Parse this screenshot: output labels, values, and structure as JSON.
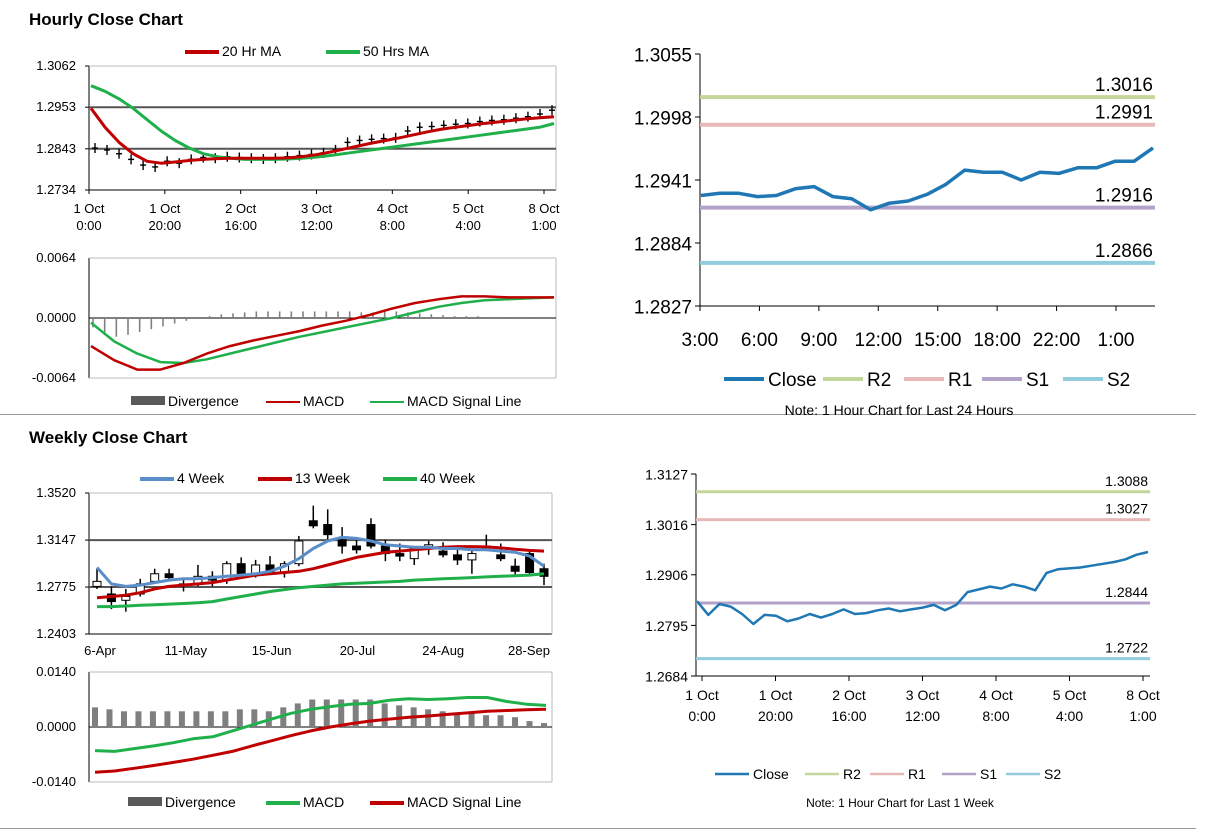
{
  "sections": {
    "hourly_title": "Hourly Close Chart",
    "weekly_title": "Weekly Close Chart"
  },
  "colors": {
    "ma20": "#c00000",
    "ma50": "#1fb04b",
    "wk4": "#5b8ec8",
    "close_line": "#1f77b4",
    "r2": "#c3d69b",
    "r1": "#e6b9b8",
    "s1": "#b3a2c7",
    "s2": "#93cddd",
    "divergence": "#808080",
    "grid": "#000000"
  },
  "chart_data": [
    {
      "id": "hourly_price",
      "type": "candlestick-line",
      "title": "",
      "legend": [
        "20 Hr MA",
        "50 Hrs MA"
      ],
      "yticks": [
        "1.3062",
        "1.2953",
        "1.2843",
        "1.2734"
      ],
      "ylim": [
        1.2734,
        1.3062
      ],
      "hlines": [
        1.2953,
        1.2843
      ],
      "xticks": [
        [
          "1 Oct",
          "0:00"
        ],
        [
          "1 Oct",
          "20:00"
        ],
        [
          "2 Oct",
          "16:00"
        ],
        [
          "3 Oct",
          "12:00"
        ],
        [
          "4 Oct",
          "8:00"
        ],
        [
          "5 Oct",
          "4:00"
        ],
        [
          "8 Oct",
          "1:00"
        ]
      ],
      "price": [
        1.2845,
        1.284,
        1.283,
        1.2815,
        1.28,
        1.2795,
        1.281,
        1.2805,
        1.2815,
        1.282,
        1.2818,
        1.2822,
        1.282,
        1.2818,
        1.2816,
        1.2818,
        1.2822,
        1.2825,
        1.2828,
        1.2832,
        1.284,
        1.286,
        1.2865,
        1.2868,
        1.287,
        1.2872,
        1.289,
        1.29,
        1.2902,
        1.2905,
        1.2908,
        1.291,
        1.2915,
        1.2918,
        1.292,
        1.2924,
        1.2928,
        1.2935,
        1.2945
      ],
      "series": [
        {
          "name": "20 Hr MA",
          "values": [
            1.295,
            1.29,
            1.286,
            1.283,
            1.281,
            1.2805,
            1.2808,
            1.2812,
            1.2815,
            1.2817,
            1.2818,
            1.2818,
            1.2818,
            1.2818,
            1.2819,
            1.2822,
            1.2827,
            1.2834,
            1.2842,
            1.285,
            1.2858,
            1.2865,
            1.2872,
            1.288,
            1.2888,
            1.2895,
            1.29,
            1.2905,
            1.291,
            1.2914,
            1.2918,
            1.2922,
            1.2925,
            1.2928
          ]
        },
        {
          "name": "50 Hrs MA",
          "values": [
            1.301,
            1.2995,
            1.2975,
            1.295,
            1.292,
            1.289,
            1.2865,
            1.2845,
            1.283,
            1.2822,
            1.2818,
            1.2815,
            1.2815,
            1.2815,
            1.2816,
            1.2818,
            1.2821,
            1.2825,
            1.283,
            1.2835,
            1.284,
            1.2845,
            1.285,
            1.2855,
            1.286,
            1.2865,
            1.287,
            1.2875,
            1.288,
            1.2885,
            1.289,
            1.2895,
            1.29,
            1.291
          ]
        }
      ]
    },
    {
      "id": "hourly_macd",
      "type": "bar-line",
      "yticks": [
        "0.0064",
        "0.0000",
        "-0.0064"
      ],
      "ylim": [
        -0.0064,
        0.0064
      ],
      "legend": [
        "Divergence",
        "MACD",
        "MACD Signal Line"
      ],
      "divergence": [
        -0.001,
        -0.0018,
        -0.002,
        -0.0018,
        -0.0015,
        -0.0012,
        -0.0009,
        -0.0006,
        -0.0003,
        -0.0001,
        0.0002,
        0.0004,
        0.0005,
        0.0006,
        0.0007,
        0.0007,
        0.0007,
        0.0007,
        0.0007,
        0.0007,
        0.0007,
        0.0007,
        0.0007,
        0.0006,
        0.0006,
        0.0007,
        0.0007,
        0.0006,
        0.0005,
        0.0004,
        0.0003,
        0.0002,
        0.0002,
        0.0002,
        0.0001,
        0.0001,
        0.0001,
        0.0001,
        0.0001,
        0.0001
      ],
      "series": [
        {
          "name": "MACD",
          "values": [
            -0.003,
            -0.0045,
            -0.0055,
            -0.0055,
            -0.0048,
            -0.0038,
            -0.003,
            -0.0024,
            -0.0019,
            -0.0014,
            -0.0008,
            -0.0003,
            0.0003,
            0.001,
            0.0016,
            0.002,
            0.0023,
            0.0023,
            0.0022,
            0.0022,
            0.0022
          ]
        },
        {
          "name": "MACD Signal Line",
          "values": [
            -0.0005,
            -0.0025,
            -0.0038,
            -0.0047,
            -0.0048,
            -0.0044,
            -0.0038,
            -0.0032,
            -0.0026,
            -0.002,
            -0.0015,
            -0.001,
            -0.0005,
            0.0,
            0.0006,
            0.0012,
            0.0016,
            0.0019,
            0.002,
            0.0021,
            0.0022
          ]
        }
      ]
    },
    {
      "id": "hourly_pivot",
      "type": "line",
      "note": "Note: 1 Hour Chart for Last 24 Hours",
      "yticks": [
        "1.3055",
        "1.2998",
        "1.2941",
        "1.2884",
        "1.2827"
      ],
      "ylim": [
        1.2827,
        1.3055
      ],
      "xticks": [
        "3:00",
        "6:00",
        "9:00",
        "12:00",
        "15:00",
        "18:00",
        "22:00",
        "1:00"
      ],
      "legend": [
        "Close",
        "R2",
        "R1",
        "S1",
        "S2"
      ],
      "levels": {
        "R2": 1.3016,
        "R1": 1.2991,
        "S1": 1.2916,
        "S2": 1.2866
      },
      "level_labels": {
        "R2": "1.3016",
        "R1": "1.2991",
        "S1": "1.2916",
        "S2": "1.2866"
      },
      "close": [
        1.2927,
        1.2929,
        1.2929,
        1.2926,
        1.2927,
        1.2933,
        1.2935,
        1.2926,
        1.2924,
        1.2914,
        1.292,
        1.2922,
        1.2928,
        1.2937,
        1.295,
        1.2948,
        1.2948,
        1.2941,
        1.2948,
        1.2947,
        1.2952,
        1.2952,
        1.2958,
        1.2958,
        1.297
      ]
    },
    {
      "id": "weekly_price",
      "type": "candlestick-line",
      "legend": [
        "4 Week",
        "13 Week",
        "40 Week"
      ],
      "yticks": [
        "1.3520",
        "1.3147",
        "1.2775",
        "1.2403"
      ],
      "ylim": [
        1.2403,
        1.352
      ],
      "hlines": [
        1.3147,
        1.2775
      ],
      "xticks": [
        "6-Apr",
        "11-May",
        "15-Jun",
        "20-Jul",
        "24-Aug",
        "28-Sep"
      ],
      "candles": [
        [
          1.278,
          1.292,
          1.276,
          1.282
        ],
        [
          1.272,
          1.278,
          1.26,
          1.266
        ],
        [
          1.267,
          1.276,
          1.258,
          1.27
        ],
        [
          1.272,
          1.284,
          1.27,
          1.28
        ],
        [
          1.282,
          1.292,
          1.281,
          1.288
        ],
        [
          1.288,
          1.292,
          1.282,
          1.285
        ],
        [
          1.279,
          1.285,
          1.274,
          1.28
        ],
        [
          1.28,
          1.295,
          1.278,
          1.286
        ],
        [
          1.286,
          1.29,
          1.278,
          1.283
        ],
        [
          1.283,
          1.298,
          1.28,
          1.296
        ],
        [
          1.296,
          1.301,
          1.285,
          1.287
        ],
        [
          1.287,
          1.299,
          1.285,
          1.295
        ],
        [
          1.295,
          1.302,
          1.287,
          1.289
        ],
        [
          1.289,
          1.298,
          1.285,
          1.296
        ],
        [
          1.296,
          1.318,
          1.294,
          1.314
        ],
        [
          1.33,
          1.342,
          1.324,
          1.326
        ],
        [
          1.327,
          1.339,
          1.314,
          1.319
        ],
        [
          1.315,
          1.325,
          1.304,
          1.31
        ],
        [
          1.31,
          1.316,
          1.304,
          1.307
        ],
        [
          1.327,
          1.332,
          1.308,
          1.31
        ],
        [
          1.31,
          1.315,
          1.298,
          1.304
        ],
        [
          1.304,
          1.312,
          1.298,
          1.302
        ],
        [
          1.3,
          1.309,
          1.295,
          1.308
        ],
        [
          1.308,
          1.314,
          1.303,
          1.311
        ],
        [
          1.306,
          1.313,
          1.301,
          1.303
        ],
        [
          1.303,
          1.31,
          1.295,
          1.299
        ],
        [
          1.299,
          1.306,
          1.288,
          1.304
        ],
        [
          1.309,
          1.319,
          1.306,
          1.31
        ],
        [
          1.303,
          1.312,
          1.298,
          1.3
        ],
        [
          1.294,
          1.3,
          1.287,
          1.29
        ],
        [
          1.304,
          1.307,
          1.287,
          1.289
        ],
        [
          1.292,
          1.296,
          1.279,
          1.286
        ]
      ],
      "series": [
        {
          "name": "4 Week",
          "values": [
            1.293,
            1.28,
            1.278,
            1.279,
            1.281,
            1.283,
            1.284,
            1.284,
            1.285,
            1.286,
            1.287,
            1.288,
            1.29,
            1.294,
            1.3,
            1.308,
            1.314,
            1.317,
            1.316,
            1.314,
            1.311,
            1.31,
            1.309,
            1.309,
            1.308,
            1.308,
            1.307,
            1.307,
            1.306,
            1.305,
            1.302,
            1.294
          ]
        },
        {
          "name": "13 Week",
          "values": [
            1.269,
            1.27,
            1.271,
            1.273,
            1.276,
            1.278,
            1.279,
            1.28,
            1.281,
            1.283,
            1.285,
            1.287,
            1.288,
            1.289,
            1.29,
            1.292,
            1.295,
            1.298,
            1.301,
            1.303,
            1.305,
            1.306,
            1.307,
            1.308,
            1.309,
            1.3095,
            1.3095,
            1.3093,
            1.3085,
            1.3075,
            1.3065,
            1.306
          ]
        },
        {
          "name": "40 Week",
          "values": [
            1.262,
            1.262,
            1.2625,
            1.263,
            1.2635,
            1.264,
            1.2645,
            1.265,
            1.266,
            1.268,
            1.27,
            1.272,
            1.274,
            1.2755,
            1.277,
            1.278,
            1.279,
            1.28,
            1.2805,
            1.281,
            1.2815,
            1.282,
            1.283,
            1.2835,
            1.284,
            1.2845,
            1.285,
            1.2855,
            1.286,
            1.2865,
            1.287,
            1.288
          ]
        }
      ]
    },
    {
      "id": "weekly_macd",
      "type": "bar-line",
      "yticks": [
        "0.0140",
        "0.0000",
        "-0.0140"
      ],
      "ylim": [
        -0.014,
        0.014
      ],
      "legend": [
        "Divergence",
        "MACD",
        "MACD Signal Line"
      ],
      "divergence": [
        0.005,
        0.0045,
        0.004,
        0.004,
        0.004,
        0.004,
        0.004,
        0.004,
        0.004,
        0.004,
        0.0045,
        0.0045,
        0.004,
        0.005,
        0.006,
        0.007,
        0.007,
        0.007,
        0.007,
        0.007,
        0.006,
        0.0055,
        0.005,
        0.0045,
        0.004,
        0.0035,
        0.0035,
        0.003,
        0.003,
        0.0025,
        0.0015,
        0.001
      ],
      "series": [
        {
          "name": "MACD",
          "values": [
            -0.006,
            -0.0062,
            -0.0055,
            -0.0048,
            -0.004,
            -0.003,
            -0.0025,
            -0.001,
            0.0005,
            0.002,
            0.0035,
            0.0045,
            0.0052,
            0.0058,
            0.006,
            0.0068,
            0.0072,
            0.007,
            0.0072,
            0.0075,
            0.0075,
            0.0065,
            0.0058,
            0.0055
          ]
        },
        {
          "name": "MACD Signal Line",
          "values": [
            -0.0115,
            -0.0112,
            -0.0105,
            -0.0098,
            -0.009,
            -0.0082,
            -0.0072,
            -0.0062,
            -0.0048,
            -0.0035,
            -0.0022,
            -0.001,
            0.0,
            0.0008,
            0.0015,
            0.002,
            0.0025,
            0.0028,
            0.0032,
            0.0036,
            0.004,
            0.0042,
            0.0044,
            0.0045
          ]
        }
      ]
    },
    {
      "id": "weekly_pivot",
      "type": "line",
      "note": "Note: 1 Hour Chart for  Last 1 Week",
      "yticks": [
        "1.3127",
        "1.3016",
        "1.2906",
        "1.2795",
        "1.2684"
      ],
      "ylim": [
        1.2684,
        1.3127
      ],
      "xticks": [
        [
          "1 Oct",
          "0:00"
        ],
        [
          "1 Oct",
          "20:00"
        ],
        [
          "2 Oct",
          "16:00"
        ],
        [
          "3 Oct",
          "12:00"
        ],
        [
          "4 Oct",
          "8:00"
        ],
        [
          "5 Oct",
          "4:00"
        ],
        [
          "8 Oct",
          "1:00"
        ]
      ],
      "legend": [
        "Close",
        "R2",
        "R1",
        "S1",
        "S2"
      ],
      "levels": {
        "R2": 1.3088,
        "R1": 1.3027,
        "S1": 1.2844,
        "S2": 1.2722
      },
      "level_labels": {
        "R2": "1.3088",
        "R1": "1.3027",
        "S1": "1.2844",
        "S2": "1.2722"
      },
      "close": [
        1.2848,
        1.2818,
        1.2842,
        1.2836,
        1.282,
        1.2798,
        1.2818,
        1.2816,
        1.2804,
        1.281,
        1.282,
        1.2812,
        1.282,
        1.283,
        1.282,
        1.2822,
        1.2828,
        1.2832,
        1.2826,
        1.283,
        1.2834,
        1.284,
        1.2828,
        1.284,
        1.2868,
        1.2874,
        1.288,
        1.2876,
        1.2885,
        1.288,
        1.2872,
        1.291,
        1.2918,
        1.292,
        1.2922,
        1.2926,
        1.293,
        1.2934,
        1.294,
        1.295,
        1.2956
      ]
    }
  ]
}
